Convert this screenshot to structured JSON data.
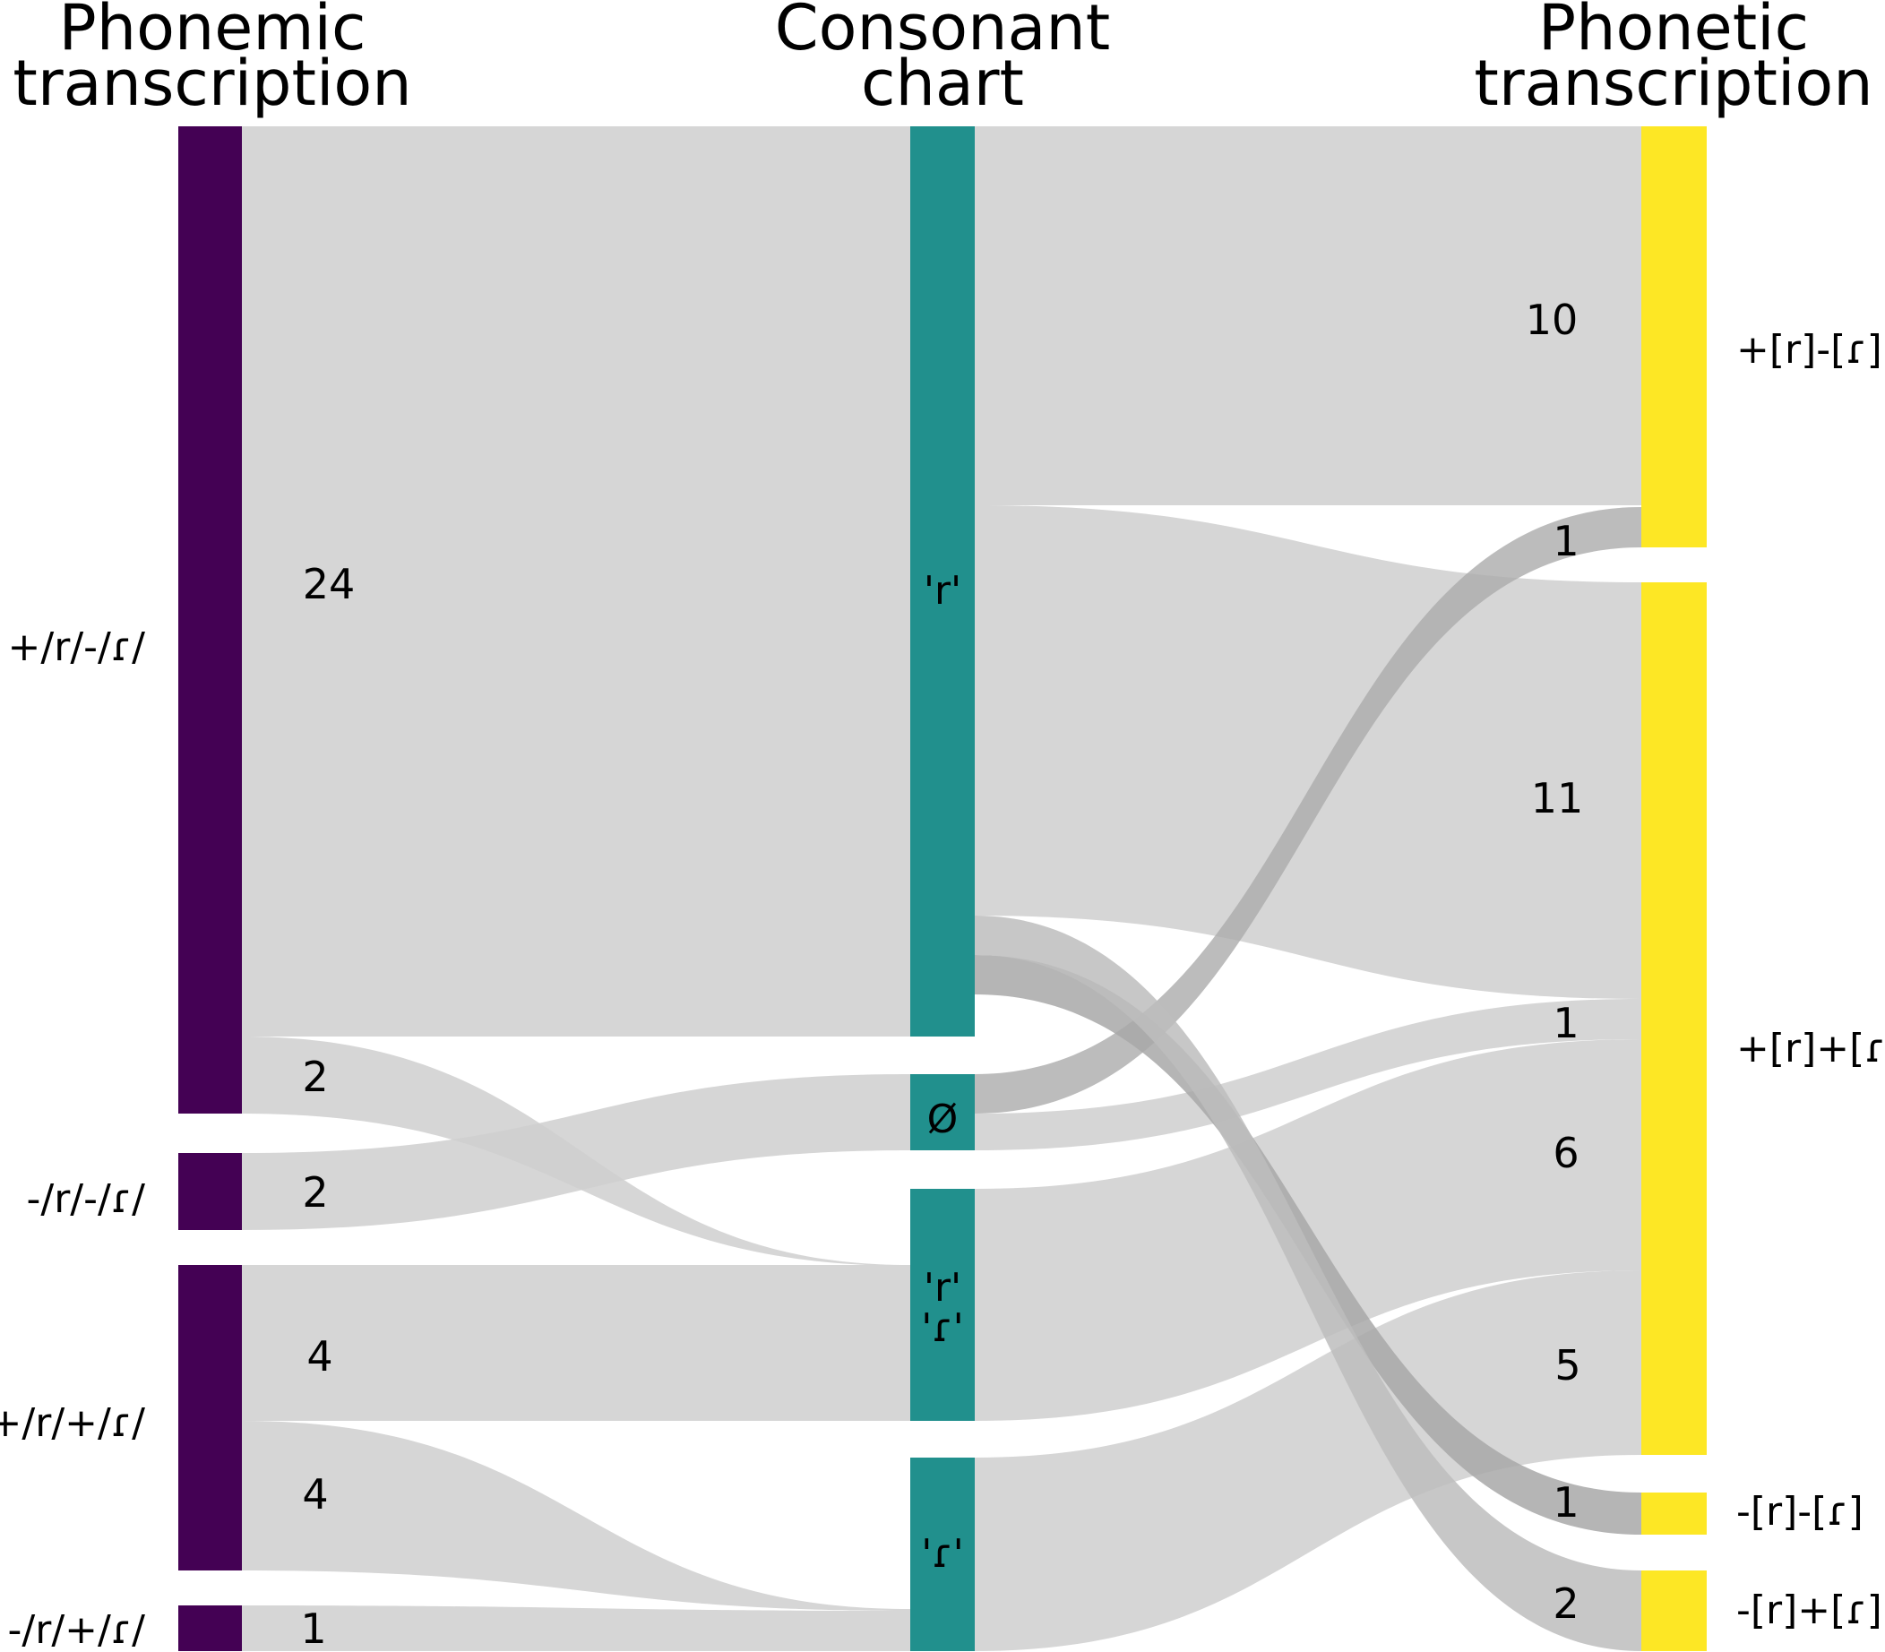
{
  "column_titles": {
    "left": [
      "Phonemic",
      "transcription"
    ],
    "middle": [
      "Consonant",
      "chart"
    ],
    "right": [
      "Phonetic",
      "transcription"
    ]
  },
  "colors": {
    "left_nodes": "#440154",
    "middle_nodes": "#21908d",
    "right_nodes": "#fde725",
    "flow": "#d3d3d3",
    "flow_emphasis": "#a8a8a8"
  },
  "nodes": {
    "left": [
      {
        "id": "L1",
        "label": "+/r/-/ɾ/"
      },
      {
        "id": "L2",
        "label": "-/r/-/ɾ/"
      },
      {
        "id": "L3",
        "label": "+/r/+/ɾ/"
      },
      {
        "id": "L4",
        "label": "-/r/+/ɾ/"
      }
    ],
    "middle": [
      {
        "id": "M1",
        "label": "'r'"
      },
      {
        "id": "M2",
        "label": "Ø"
      },
      {
        "id": "M3",
        "label": "'r'"
      },
      {
        "id": "M3b",
        "label": "'ɾ'"
      },
      {
        "id": "M4",
        "label": "'ɾ'"
      }
    ],
    "right": [
      {
        "id": "R1",
        "label": "+[r]-[ɾ]"
      },
      {
        "id": "R2",
        "label": "+[r]+[ɾ]"
      },
      {
        "id": "R3",
        "label": "-[r]-[ɾ]"
      },
      {
        "id": "R4",
        "label": "-[r]+[ɾ]"
      }
    ]
  },
  "chart_data": {
    "type": "sankey",
    "title": "",
    "links_left_to_middle": [
      {
        "source": "+/r/-/ɾ/",
        "target": "'r'",
        "value": 24
      },
      {
        "source": "+/r/-/ɾ/",
        "target": "'r' 'ɾ'",
        "value": 2
      },
      {
        "source": "-/r/-/ɾ/",
        "target": "Ø",
        "value": 2
      },
      {
        "source": "+/r/+/ɾ/",
        "target": "'r' 'ɾ'",
        "value": 4
      },
      {
        "source": "+/r/+/ɾ/",
        "target": "'ɾ'",
        "value": 4
      },
      {
        "source": "-/r/+/ɾ/",
        "target": "'ɾ'",
        "value": 1
      }
    ],
    "links_middle_to_right": [
      {
        "source": "'r'",
        "target": "+[r]-[ɾ]",
        "value": 10
      },
      {
        "source": "Ø",
        "target": "+[r]-[ɾ]",
        "value": 1
      },
      {
        "source": "'r'",
        "target": "+[r]+[ɾ]",
        "value": 11
      },
      {
        "source": "Ø",
        "target": "+[r]+[ɾ]",
        "value": 1
      },
      {
        "source": "'r' 'ɾ'",
        "target": "+[r]+[ɾ]",
        "value": 6
      },
      {
        "source": "'ɾ'",
        "target": "+[r]+[ɾ]",
        "value": 5
      },
      {
        "source": "'r'",
        "target": "-[r]-[ɾ]",
        "value": 1
      },
      {
        "source": "'r'",
        "target": "-[r]+[ɾ]",
        "value": 2
      }
    ],
    "flow_value_labels": {
      "left": [
        "24",
        "2",
        "2",
        "4",
        "4",
        "1"
      ],
      "right": [
        "10",
        "1",
        "11",
        "1",
        "6",
        "5",
        "1",
        "2"
      ]
    }
  }
}
